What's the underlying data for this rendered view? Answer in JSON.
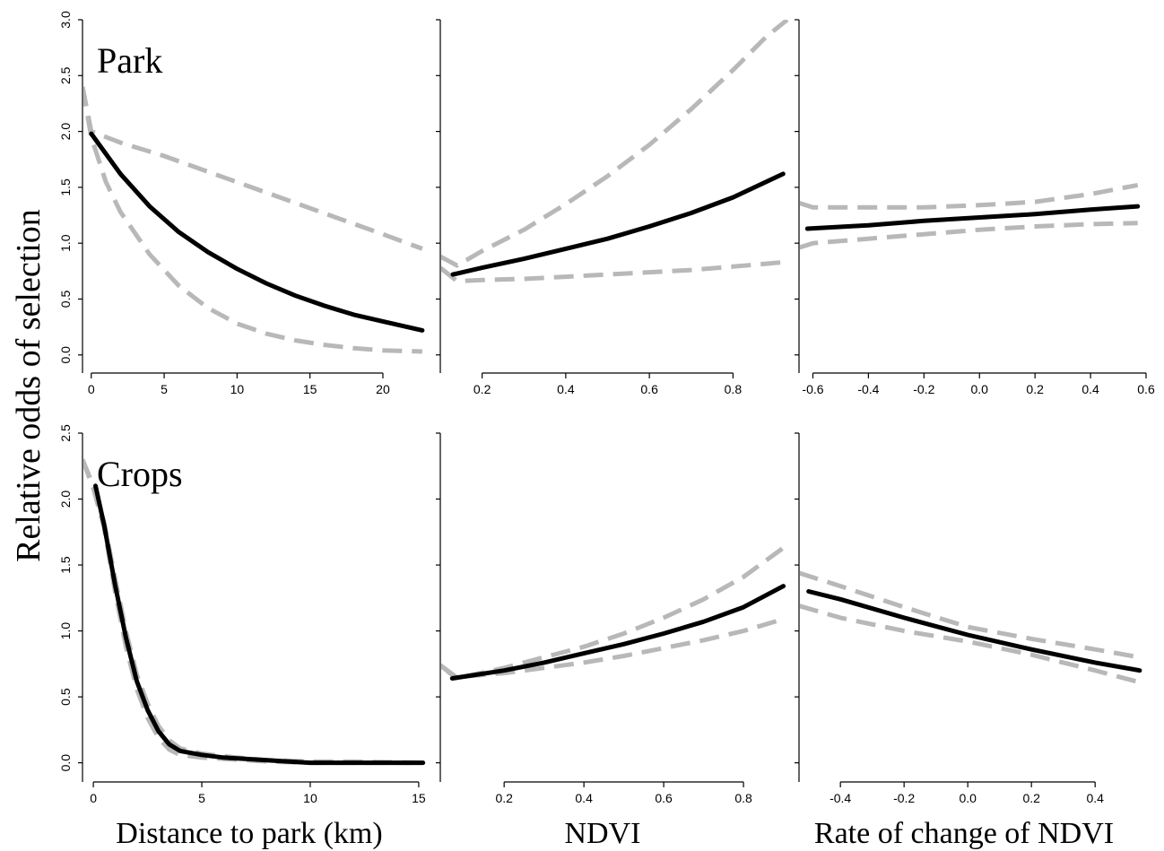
{
  "ylabel": "Relative odds of selection",
  "xlabels": [
    "Distance to park (km)",
    "NDVI",
    "Rate of change of NDVI"
  ],
  "colors": {
    "estimate": "#000000",
    "ci": "#b8b8b8"
  },
  "chart_data": [
    {
      "type": "line",
      "row": 0,
      "col": 0,
      "panel_label": "Park",
      "xlim": [
        -0.6,
        23.2
      ],
      "ylim": [
        -0.05,
        3.0
      ],
      "show_y_ticks": true,
      "xticks": [
        0,
        5,
        10,
        15,
        20
      ],
      "xtick_labels": [
        "0",
        "5",
        "10",
        "15",
        "20"
      ],
      "yticks": [
        0,
        0.5,
        1,
        1.5,
        2,
        2.5,
        3
      ],
      "ytick_labels": [
        "0.0",
        "0.5",
        "1.0",
        "1.5",
        "2.0",
        "2.5",
        "3.0"
      ],
      "series": [
        {
          "role": "estimate",
          "x": [
            0,
            2,
            4,
            6,
            8,
            10,
            12,
            14,
            16,
            18,
            20,
            22.7
          ],
          "y": [
            1.98,
            1.62,
            1.33,
            1.1,
            0.92,
            0.77,
            0.64,
            0.53,
            0.44,
            0.36,
            0.3,
            0.22
          ]
        },
        {
          "role": "upper",
          "x": [
            -0.6,
            0,
            2,
            5,
            8,
            11,
            14,
            17,
            20,
            22.7
          ],
          "y": [
            2.4,
            2.0,
            1.9,
            1.78,
            1.64,
            1.5,
            1.36,
            1.22,
            1.08,
            0.95
          ]
        },
        {
          "role": "lower",
          "x": [
            -0.6,
            0,
            1,
            2,
            4,
            6,
            8,
            10,
            12,
            14,
            16,
            18,
            20,
            22.7
          ],
          "y": [
            2.4,
            1.95,
            1.55,
            1.28,
            0.9,
            0.62,
            0.42,
            0.28,
            0.19,
            0.13,
            0.09,
            0.06,
            0.04,
            0.03
          ]
        }
      ]
    },
    {
      "type": "line",
      "row": 0,
      "col": 1,
      "panel_label": "",
      "xlim": [
        0.1,
        0.93
      ],
      "ylim": [
        -0.05,
        3.0
      ],
      "show_y_ticks": false,
      "xticks": [
        0.2,
        0.4,
        0.6,
        0.8
      ],
      "xtick_labels": [
        "0.2",
        "0.4",
        "0.6",
        "0.8"
      ],
      "yticks": [
        0,
        0.5,
        1,
        1.5,
        2,
        2.5,
        3
      ],
      "ytick_labels": [],
      "series": [
        {
          "role": "estimate",
          "x": [
            0.13,
            0.2,
            0.3,
            0.4,
            0.5,
            0.6,
            0.7,
            0.8,
            0.92
          ],
          "y": [
            0.72,
            0.78,
            0.86,
            0.95,
            1.04,
            1.15,
            1.27,
            1.41,
            1.62
          ]
        },
        {
          "role": "upper",
          "x": [
            0.1,
            0.14,
            0.2,
            0.3,
            0.4,
            0.5,
            0.6,
            0.7,
            0.8,
            0.88,
            0.93
          ],
          "y": [
            0.88,
            0.8,
            0.93,
            1.12,
            1.35,
            1.6,
            1.88,
            2.2,
            2.55,
            2.85,
            3.0
          ]
        },
        {
          "role": "lower",
          "x": [
            0.1,
            0.14,
            0.2,
            0.3,
            0.4,
            0.5,
            0.6,
            0.7,
            0.8,
            0.92
          ],
          "y": [
            0.78,
            0.66,
            0.67,
            0.68,
            0.7,
            0.72,
            0.74,
            0.76,
            0.79,
            0.83
          ]
        }
      ]
    },
    {
      "type": "line",
      "row": 0,
      "col": 2,
      "panel_label": "",
      "xlim": [
        -0.65,
        0.6
      ],
      "ylim": [
        -0.05,
        3.0
      ],
      "show_y_ticks": false,
      "xticks": [
        -0.6,
        -0.4,
        -0.2,
        0,
        0.2,
        0.4,
        0.6
      ],
      "xtick_labels": [
        "-0.6",
        "-0.4",
        "-0.2",
        "0.0",
        "0.2",
        "0.4",
        "0.6"
      ],
      "yticks": [
        0,
        0.5,
        1,
        1.5,
        2,
        2.5,
        3
      ],
      "ytick_labels": [],
      "series": [
        {
          "role": "estimate",
          "x": [
            -0.62,
            -0.4,
            -0.2,
            0,
            0.2,
            0.4,
            0.57
          ],
          "y": [
            1.13,
            1.16,
            1.2,
            1.23,
            1.26,
            1.3,
            1.33
          ]
        },
        {
          "role": "upper",
          "x": [
            -0.65,
            -0.6,
            -0.4,
            -0.2,
            0,
            0.2,
            0.4,
            0.57
          ],
          "y": [
            1.36,
            1.32,
            1.32,
            1.32,
            1.34,
            1.37,
            1.44,
            1.52
          ]
        },
        {
          "role": "lower",
          "x": [
            -0.65,
            -0.6,
            -0.4,
            -0.2,
            0,
            0.2,
            0.4,
            0.57
          ],
          "y": [
            0.96,
            1.0,
            1.04,
            1.08,
            1.12,
            1.15,
            1.17,
            1.18
          ]
        }
      ]
    },
    {
      "type": "line",
      "row": 1,
      "col": 0,
      "panel_label": "Crops",
      "xlim": [
        -0.5,
        15.5
      ],
      "ylim": [
        -0.05,
        2.5
      ],
      "show_y_ticks": true,
      "xticks": [
        0,
        5,
        10,
        15
      ],
      "xtick_labels": [
        "0",
        "5",
        "10",
        "15"
      ],
      "yticks": [
        0,
        0.5,
        1,
        1.5,
        2,
        2.5
      ],
      "ytick_labels": [
        "0.0",
        "0.5",
        "1.0",
        "1.5",
        "2.0",
        "2.5"
      ],
      "series": [
        {
          "role": "estimate",
          "x": [
            0.1,
            0.5,
            1,
            1.5,
            2,
            2.5,
            3,
            3.5,
            4,
            5,
            6,
            7,
            8,
            9,
            10,
            11,
            12,
            13,
            14,
            15.2
          ],
          "y": [
            2.1,
            1.8,
            1.35,
            0.95,
            0.62,
            0.4,
            0.24,
            0.14,
            0.09,
            0.06,
            0.04,
            0.03,
            0.02,
            0.01,
            0.0,
            0.0,
            0.0,
            0.0,
            0.0,
            0.0
          ]
        },
        {
          "role": "upper",
          "x": [
            -0.5,
            0,
            0.5,
            1,
            1.5,
            2,
            2.5,
            3,
            3.5,
            4,
            5,
            6,
            8,
            10,
            12,
            15.2
          ],
          "y": [
            2.3,
            2.1,
            1.82,
            1.4,
            1.0,
            0.67,
            0.45,
            0.28,
            0.17,
            0.11,
            0.07,
            0.05,
            0.02,
            0.01,
            0.01,
            0.0
          ]
        },
        {
          "role": "lower",
          "x": [
            -0.5,
            0,
            0.5,
            1,
            1.5,
            2,
            2.5,
            3,
            3.5,
            4,
            5,
            6,
            8,
            10,
            12,
            15.2
          ],
          "y": [
            2.3,
            2.08,
            1.78,
            1.3,
            0.88,
            0.56,
            0.34,
            0.19,
            0.1,
            0.06,
            0.04,
            0.03,
            0.01,
            0.0,
            0.0,
            0.0
          ]
        }
      ]
    },
    {
      "type": "line",
      "row": 1,
      "col": 1,
      "panel_label": "",
      "xlim": [
        0.04,
        0.91
      ],
      "ylim": [
        -0.05,
        2.5
      ],
      "show_y_ticks": false,
      "xticks": [
        0.2,
        0.4,
        0.6,
        0.8
      ],
      "xtick_labels": [
        "0.2",
        "0.4",
        "0.6",
        "0.8"
      ],
      "yticks": [
        0,
        0.5,
        1,
        1.5,
        2,
        2.5
      ],
      "ytick_labels": [],
      "series": [
        {
          "role": "estimate",
          "x": [
            0.07,
            0.2,
            0.3,
            0.4,
            0.5,
            0.6,
            0.7,
            0.8,
            0.9
          ],
          "y": [
            0.64,
            0.7,
            0.76,
            0.83,
            0.9,
            0.98,
            1.07,
            1.18,
            1.34
          ]
        },
        {
          "role": "upper",
          "x": [
            0.04,
            0.08,
            0.2,
            0.3,
            0.4,
            0.5,
            0.6,
            0.7,
            0.8,
            0.9
          ],
          "y": [
            0.74,
            0.64,
            0.72,
            0.8,
            0.88,
            0.98,
            1.1,
            1.24,
            1.41,
            1.63
          ]
        },
        {
          "role": "lower",
          "x": [
            0.04,
            0.08,
            0.2,
            0.3,
            0.4,
            0.5,
            0.6,
            0.7,
            0.8,
            0.9
          ],
          "y": [
            0.74,
            0.65,
            0.68,
            0.72,
            0.76,
            0.81,
            0.87,
            0.93,
            1.0,
            1.09
          ]
        }
      ]
    },
    {
      "type": "line",
      "row": 1,
      "col": 2,
      "panel_label": "",
      "xlim": [
        -0.53,
        0.56
      ],
      "ylim": [
        -0.05,
        2.5
      ],
      "show_y_ticks": false,
      "xticks": [
        -0.4,
        -0.2,
        0,
        0.2,
        0.4
      ],
      "xtick_labels": [
        "-0.4",
        "-0.2",
        "0.0",
        "0.2",
        "0.4"
      ],
      "yticks": [
        0,
        0.5,
        1,
        1.5,
        2,
        2.5
      ],
      "ytick_labels": [],
      "series": [
        {
          "role": "estimate",
          "x": [
            -0.5,
            -0.4,
            -0.2,
            0,
            0.2,
            0.4,
            0.54
          ],
          "y": [
            1.3,
            1.24,
            1.1,
            0.97,
            0.86,
            0.76,
            0.7
          ]
        },
        {
          "role": "upper",
          "x": [
            -0.53,
            -0.4,
            -0.2,
            0,
            0.2,
            0.4,
            0.54
          ],
          "y": [
            1.44,
            1.34,
            1.18,
            1.03,
            0.94,
            0.86,
            0.8
          ]
        },
        {
          "role": "lower",
          "x": [
            -0.53,
            -0.4,
            -0.2,
            0,
            0.2,
            0.4,
            0.54
          ],
          "y": [
            1.19,
            1.1,
            1.0,
            0.92,
            0.82,
            0.7,
            0.61
          ]
        }
      ]
    }
  ]
}
